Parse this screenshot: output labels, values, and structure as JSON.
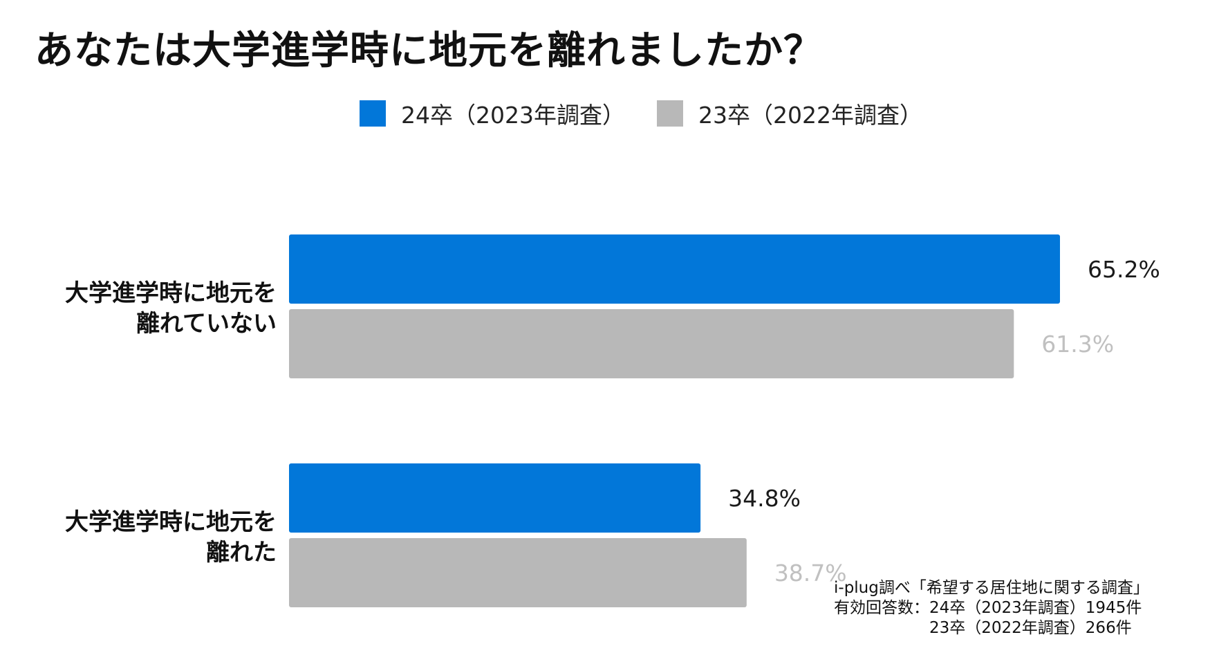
{
  "title": "あなたは大学進学時に地元を離れましたか？",
  "colors": {
    "series_2024": "#0277d9",
    "series_2023": "#b8b8b8",
    "label_2023": "#c0c0c0"
  },
  "chart_data": {
    "type": "bar",
    "orientation": "horizontal",
    "title": "あなたは大学進学時に地元を離れましたか？",
    "categories": [
      [
        "大学進学時に地元を",
        "離れていない"
      ],
      [
        "大学進学時に地元を",
        "離れた"
      ]
    ],
    "series": [
      {
        "name": "24卒（2023年調査）",
        "values": [
          65.2,
          34.8
        ],
        "labels": [
          "65.2%",
          "34.8%"
        ],
        "color": "#0277d9"
      },
      {
        "name": "23卒（2022年調査）",
        "values": [
          61.3,
          38.7
        ],
        "labels": [
          "61.3%",
          "38.7%"
        ],
        "color": "#b8b8b8"
      }
    ],
    "legend_position": "top",
    "grid": false,
    "xlim": [
      0,
      70
    ]
  },
  "note": {
    "line1": "i-plug調べ「希望する居住地に関する調査」",
    "line2": "有効回答数：24卒（2023年調査）1945件",
    "line3": "　　　　　　23卒（2022年調査）266件"
  }
}
